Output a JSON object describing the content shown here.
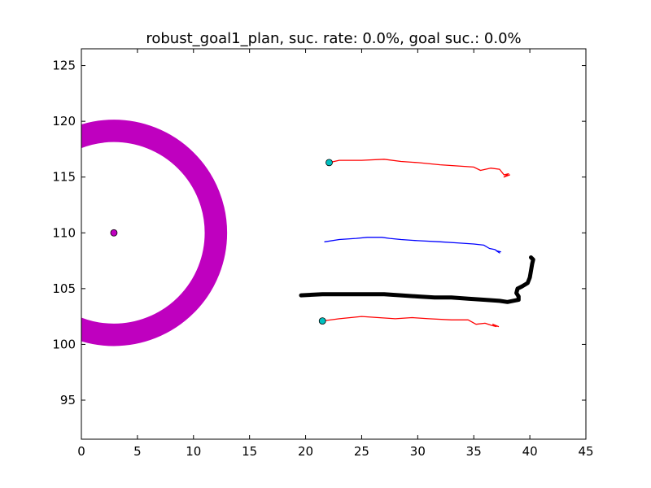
{
  "chart_data": {
    "type": "line",
    "title": "robust_goal1_plan, suc. rate: 0.0%, goal suc.: 0.0%",
    "xlabel": "",
    "ylabel": "",
    "xlim": [
      0,
      45
    ],
    "ylim": [
      91.5,
      126.5
    ],
    "x_ticks": [
      0,
      5,
      10,
      15,
      20,
      25,
      30,
      35,
      40,
      45
    ],
    "y_ticks": [
      95,
      100,
      105,
      110,
      115,
      120,
      125
    ],
    "grid": false,
    "legend": "none",
    "goal_region": {
      "center": [
        2.9,
        110.0
      ],
      "inner_radius": 8.1,
      "outer_radius": 10.1,
      "color": "#bf00bf"
    },
    "goal_point": {
      "x": 2.9,
      "y": 110.0,
      "color": "#bf00bf"
    },
    "series": [
      {
        "color": "#ff0000",
        "style": "thin",
        "start_marker": true,
        "marker_color": "#00bfbf",
        "points": [
          [
            22.1,
            116.3
          ],
          [
            23,
            116.5
          ],
          [
            25,
            116.5
          ],
          [
            27,
            116.6
          ],
          [
            28.5,
            116.4
          ],
          [
            30,
            116.3
          ],
          [
            32,
            116.1
          ],
          [
            33.5,
            116.0
          ],
          [
            35,
            115.9
          ],
          [
            35.6,
            115.6
          ],
          [
            36.5,
            115.8
          ],
          [
            37.3,
            115.7
          ],
          [
            37.7,
            115.2
          ],
          [
            38.1,
            115.3
          ],
          [
            37.7,
            115.0
          ],
          [
            38.2,
            115.2
          ]
        ]
      },
      {
        "color": "#0000ff",
        "style": "thin",
        "start_marker": false,
        "points": [
          [
            21.7,
            109.2
          ],
          [
            23,
            109.4
          ],
          [
            24.5,
            109.5
          ],
          [
            25.5,
            109.6
          ],
          [
            26.8,
            109.6
          ],
          [
            27.5,
            109.5
          ],
          [
            28.5,
            109.4
          ],
          [
            30,
            109.3
          ],
          [
            32,
            109.2
          ],
          [
            33.5,
            109.1
          ],
          [
            35,
            109.0
          ],
          [
            35.9,
            108.9
          ],
          [
            36.4,
            108.6
          ],
          [
            36.9,
            108.5
          ],
          [
            37.3,
            108.2
          ],
          [
            37.0,
            108.4
          ],
          [
            37.4,
            108.3
          ]
        ]
      },
      {
        "color": "#ff0000",
        "style": "thin",
        "start_marker": true,
        "marker_color": "#00bfbf",
        "points": [
          [
            21.5,
            102.1
          ],
          [
            23,
            102.3
          ],
          [
            25,
            102.5
          ],
          [
            26.5,
            102.4
          ],
          [
            28,
            102.3
          ],
          [
            29.5,
            102.4
          ],
          [
            31,
            102.3
          ],
          [
            33,
            102.2
          ],
          [
            34.5,
            102.2
          ],
          [
            35.2,
            101.8
          ],
          [
            36,
            101.9
          ],
          [
            36.6,
            101.7
          ],
          [
            37.0,
            101.6
          ],
          [
            36.7,
            101.8
          ],
          [
            37.2,
            101.6
          ]
        ]
      },
      {
        "color": "#000000",
        "style": "thick",
        "start_marker": false,
        "points": [
          [
            19.6,
            104.4
          ],
          [
            21.5,
            104.5
          ],
          [
            23,
            104.5
          ],
          [
            25,
            104.5
          ],
          [
            27,
            104.5
          ],
          [
            28.5,
            104.4
          ],
          [
            30,
            104.3
          ],
          [
            31.5,
            104.2
          ],
          [
            33,
            104.2
          ],
          [
            34.5,
            104.1
          ],
          [
            36,
            104.0
          ],
          [
            37.3,
            103.9
          ],
          [
            38.0,
            103.8
          ],
          [
            38.5,
            103.9
          ],
          [
            39.0,
            104.0
          ],
          [
            39.0,
            104.3
          ],
          [
            38.8,
            104.6
          ],
          [
            38.9,
            105.0
          ],
          [
            39.3,
            105.2
          ],
          [
            39.8,
            105.5
          ],
          [
            40.0,
            106.0
          ],
          [
            40.1,
            106.6
          ],
          [
            40.2,
            107.2
          ],
          [
            40.3,
            107.6
          ],
          [
            40.1,
            107.8
          ]
        ]
      }
    ]
  }
}
